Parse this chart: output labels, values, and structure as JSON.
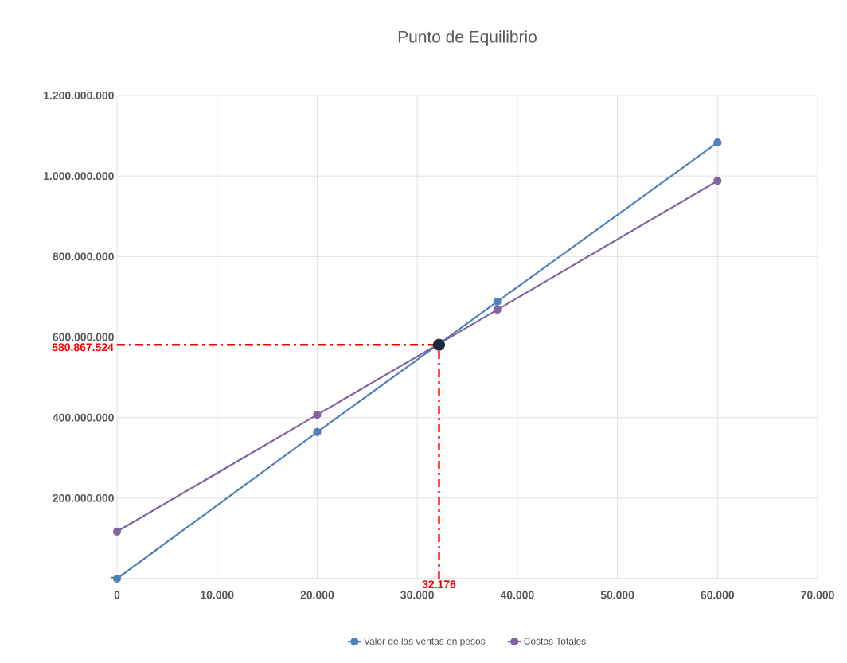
{
  "chart_data": {
    "type": "line",
    "title": "Punto de Equilibrio",
    "x": [
      0,
      20000,
      38000,
      60000
    ],
    "series": [
      {
        "name": "Valor de las ventas en pesos",
        "color": "#4f81bd",
        "values": [
          0,
          364000000,
          688000000,
          1083000000
        ]
      },
      {
        "name": "Costos Totales",
        "color": "#8064a2",
        "values": [
          117000000,
          407000000,
          668000000,
          988000000
        ]
      },
      {
        "type": "scatter",
        "color": "#1c2a44",
        "x": [
          32176
        ],
        "values": [
          580867524
        ]
      }
    ],
    "xlim": [
      0,
      70000
    ],
    "xticks": [
      0,
      {
        "value": 10000,
        "label": "10.000"
      },
      {
        "value": 20000,
        "label": "20.000"
      },
      {
        "value": 30000,
        "label": "30.000"
      },
      {
        "value": 40000,
        "label": "40.000"
      },
      {
        "value": 50000,
        "label": "50.000"
      },
      {
        "value": 60000,
        "label": "60.000"
      },
      {
        "value": 70000,
        "label": "70.000"
      }
    ],
    "ylim": [
      0,
      1200000000
    ],
    "yticks": [
      {
        "value": 0,
        "label": "-"
      },
      {
        "value": 200000000,
        "label": "200.000.000"
      },
      {
        "value": 400000000,
        "label": "400.000.000"
      },
      {
        "value": 600000000,
        "label": "600.000.000"
      },
      {
        "value": 800000000,
        "label": "800.000.000"
      },
      {
        "value": 1000000000,
        "label": "1.000.000.000"
      },
      {
        "value": 1200000000,
        "label": "1.200.000.000"
      }
    ],
    "ref_lines": [
      {
        "axis": "y",
        "value": 580867524,
        "label": "580.867.524",
        "color": "#ff0000",
        "line_style": "dashdot"
      },
      {
        "axis": "x",
        "value": 32176,
        "label": "32.176",
        "color": "#ff0000",
        "line_style": "dashdot"
      }
    ],
    "grid": true,
    "legend": "bottom",
    "marker": "circle",
    "line_style": "solid"
  }
}
